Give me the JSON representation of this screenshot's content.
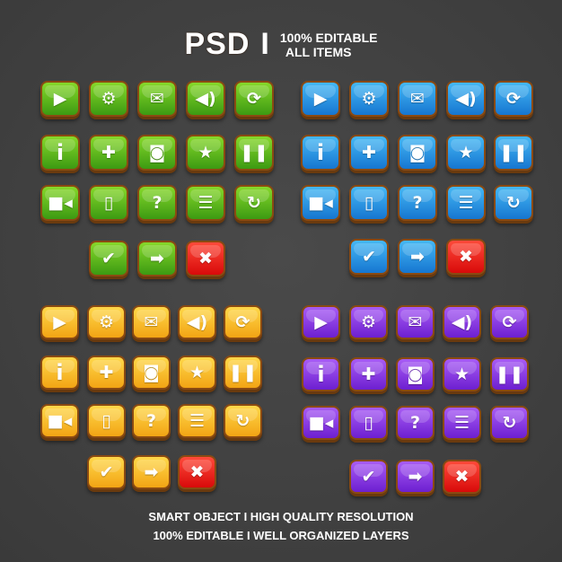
{
  "header": {
    "title": "PSD",
    "separator": "I",
    "line1": "100% EDITABLE",
    "line2": "ALL ITEMS"
  },
  "footer": {
    "line1": "SMART OBJECT  I  HIGH QUALITY RESOLUTION",
    "line2": "100% EDITABLE  I  WELL ORGANIZED  LAYERS"
  },
  "icon_rows": [
    [
      "play",
      "settings",
      "mail",
      "sound",
      "refresh"
    ],
    [
      "info",
      "gamepad",
      "camera",
      "trophy",
      "pause"
    ],
    [
      "video",
      "vibrate",
      "help",
      "list",
      "restart"
    ]
  ],
  "bottom_row": [
    "check",
    "arrow-right",
    "close"
  ],
  "close_color": {
    "top": "#ff4a3a",
    "bottom": "#d80a0a"
  },
  "sets": [
    {
      "name": "green",
      "top": "#86d82a",
      "bottom": "#3c9a12"
    },
    {
      "name": "blue",
      "top": "#45b8f5",
      "bottom": "#1676d0"
    },
    {
      "name": "orange",
      "top": "#ffd84a",
      "bottom": "#f2a414"
    },
    {
      "name": "purple",
      "top": "#a85cf5",
      "bottom": "#6d1fd0"
    }
  ]
}
